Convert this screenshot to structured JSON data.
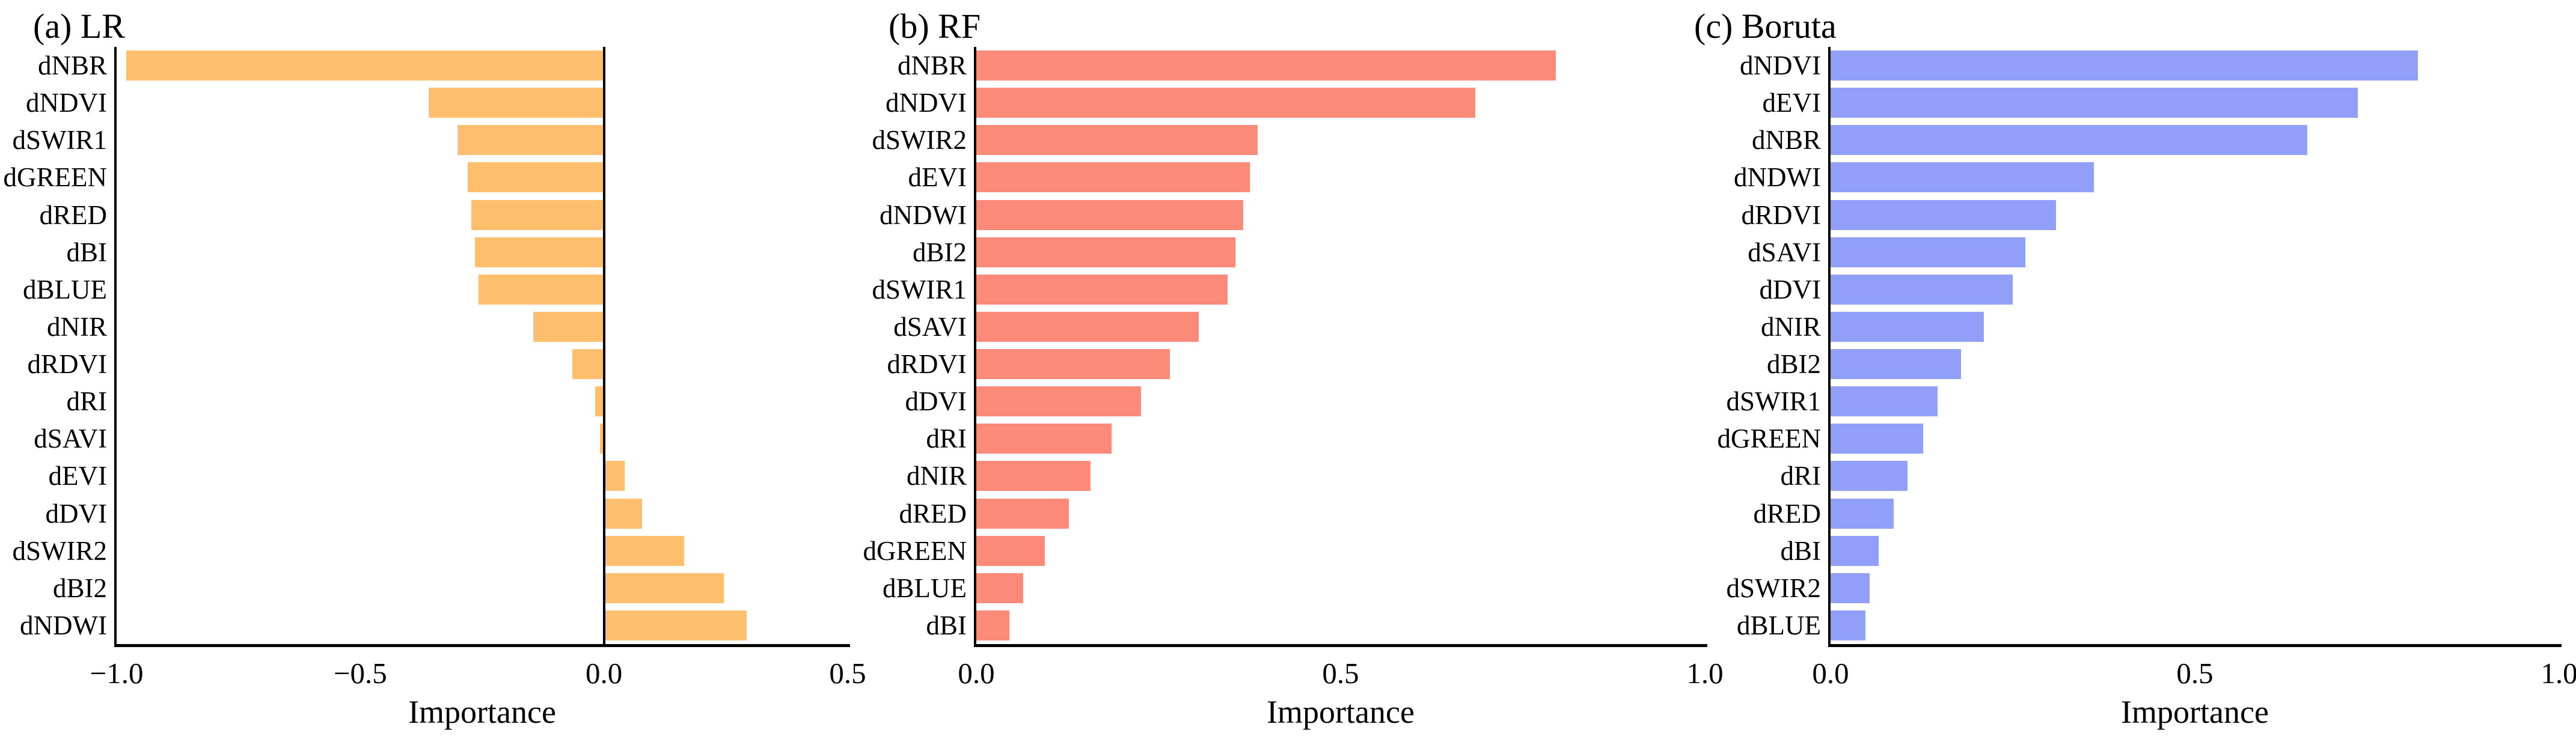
{
  "figure": {
    "background": "#ffffff",
    "text_color": "#000000",
    "axis_color": "#000000"
  },
  "chart_data": [
    {
      "type": "bar",
      "orientation": "horizontal",
      "title": "(a) LR",
      "xlabel": "Importance",
      "bar_color": "#fdbe6e",
      "xlim": [
        -1.0,
        0.5
      ],
      "grid": false,
      "zero_line": true,
      "categories": [
        "dNBR",
        "dNDVI",
        "dSWIR1",
        "dGREEN",
        "dRED",
        "dBI",
        "dBLUE",
        "dNIR",
        "dRDVI",
        "dRI",
        "dSAVI",
        "dEVI",
        "dDVI",
        "dSWIR2",
        "dBI2",
        "dNDWI"
      ],
      "values": [
        -0.98,
        -0.36,
        -0.3,
        -0.28,
        -0.272,
        -0.265,
        -0.258,
        -0.145,
        -0.065,
        -0.018,
        -0.008,
        0.042,
        0.078,
        0.165,
        0.246,
        0.293
      ],
      "xticks": [
        {
          "label": "−1.0",
          "value": -1.0
        },
        {
          "label": "−0.5",
          "value": -0.5
        },
        {
          "label": "0.0",
          "value": 0.0
        },
        {
          "label": "0.5",
          "value": 0.5
        }
      ]
    },
    {
      "type": "bar",
      "orientation": "horizontal",
      "title": "(b) RF",
      "xlabel": "Importance",
      "bar_color": "#fb8a79",
      "xlim": [
        0.0,
        1.0
      ],
      "grid": false,
      "zero_line": false,
      "categories": [
        "dNBR",
        "dNDVI",
        "dSWIR2",
        "dEVI",
        "dNDWI",
        "dBI2",
        "dSWIR1",
        "dSAVI",
        "dRDVI",
        "dDVI",
        "dRI",
        "dNIR",
        "dRED",
        "dGREEN",
        "dBLUE",
        "dBI"
      ],
      "values": [
        0.795,
        0.685,
        0.386,
        0.375,
        0.366,
        0.356,
        0.345,
        0.305,
        0.266,
        0.226,
        0.186,
        0.157,
        0.127,
        0.094,
        0.064,
        0.045
      ],
      "xticks": [
        {
          "label": "0.0",
          "value": 0.0
        },
        {
          "label": "0.5",
          "value": 0.5
        },
        {
          "label": "1.0",
          "value": 1.0
        }
      ]
    },
    {
      "type": "bar",
      "orientation": "horizontal",
      "title": "(c) Boruta",
      "xlabel": "Importance",
      "bar_color": "#919ff8",
      "xlim": [
        0.0,
        1.0
      ],
      "grid": false,
      "zero_line": false,
      "categories": [
        "dNDVI",
        "dEVI",
        "dNBR",
        "dNDWI",
        "dRDVI",
        "dSAVI",
        "dDVI",
        "dNIR",
        "dBI2",
        "dSWIR1",
        "dGREEN",
        "dRI",
        "dRED",
        "dBI",
        "dSWIR2",
        "dBLUE"
      ],
      "values": [
        0.806,
        0.724,
        0.654,
        0.361,
        0.309,
        0.267,
        0.25,
        0.21,
        0.179,
        0.147,
        0.127,
        0.106,
        0.087,
        0.066,
        0.054,
        0.048
      ],
      "xticks": [
        {
          "label": "0.0",
          "value": 0.0
        },
        {
          "label": "0.5",
          "value": 0.5
        },
        {
          "label": "1.0",
          "value": 1.0
        }
      ]
    }
  ]
}
